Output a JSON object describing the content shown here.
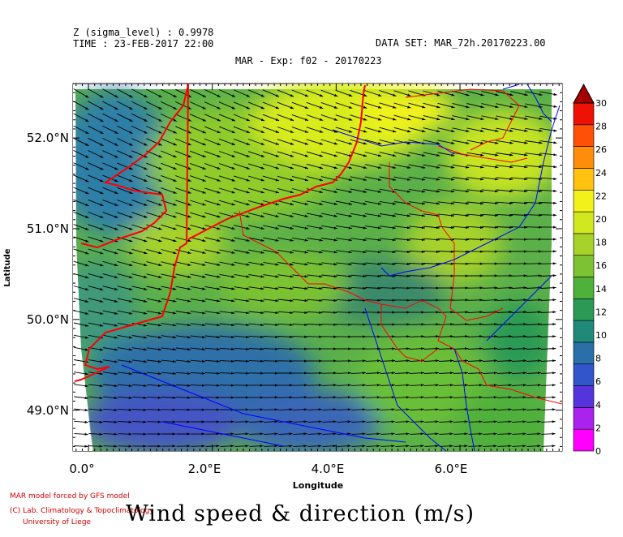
{
  "header": {
    "z_level": "Z (sigma_level) : 0.9978",
    "time": "TIME : 23-FEB-2017 22:00",
    "dataset": "DATA SET: MAR_72h.20170223.00",
    "experiment": "MAR - Exp: f02 - 20170223"
  },
  "map": {
    "y_axis_label": "Latitude",
    "x_axis_label": "Longitude",
    "lat_ticks": [
      "52.0°N",
      "51.0°N",
      "50.0°N",
      "49.0°N"
    ],
    "lat_values": [
      52.0,
      51.0,
      50.0,
      49.0
    ],
    "lon_ticks": [
      "0.0°",
      "2.0°E",
      "4.0°E",
      "6.0°E"
    ],
    "lon_values": [
      0.0,
      2.0,
      4.0,
      6.0
    ],
    "lon_range": [
      -0.25,
      7.65
    ],
    "lat_range": [
      48.55,
      52.6
    ],
    "coastline_color": "#ff0000",
    "border_color": "#ff0000",
    "river_color": "#0000ff",
    "vector_color": "#000000"
  },
  "colorbar": {
    "labels": [
      "30",
      "28",
      "26",
      "24",
      "22",
      "20",
      "18",
      "16",
      "14",
      "12",
      "10",
      "8",
      "6",
      "4",
      "2",
      "0"
    ],
    "colors": [
      "#ff00ff",
      "#aa22ee",
      "#5533dd",
      "#3355cc",
      "#2a6fa8",
      "#1f8a7a",
      "#2a9a55",
      "#4fb03a",
      "#7cc232",
      "#a6d22a",
      "#d2e81e",
      "#f2f21a",
      "#ffc20e",
      "#ff8c0a",
      "#ff5008",
      "#ee1106"
    ],
    "top_color": "#a40000"
  },
  "credits": {
    "line1": "MAR model forced by GFS model",
    "line2": "(C) Lab. Climatology & Topoclimatology",
    "line3": "University of Liege"
  },
  "title": "Wind speed & direction (m/s)"
}
